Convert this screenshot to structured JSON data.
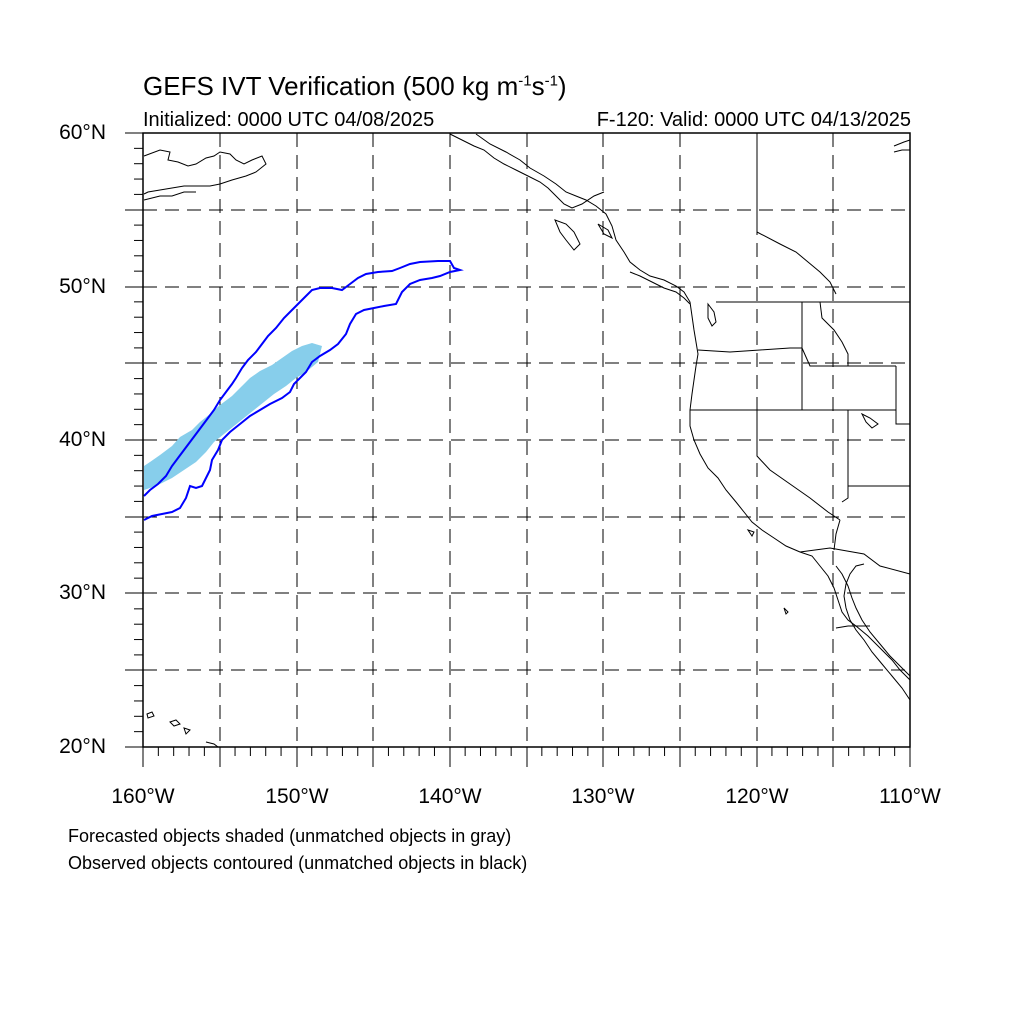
{
  "title": {
    "text": "GEFS IVT Verification (500 kg m",
    "exp1": "-1",
    "mid": "s",
    "exp2": "-1",
    "close": ")"
  },
  "subtitle_left": "Initialized: 0000 UTC 04/08/2025",
  "subtitle_right": "F-120: Valid: 0000 UTC 04/13/2025",
  "map": {
    "projection": "cylindrical-equidistant",
    "lon_range": [
      -160,
      -110
    ],
    "lat_range": [
      20,
      60
    ],
    "grid": "dashed every 5 degrees",
    "forecast_fill_color": "#87ceeb",
    "observed_contour_color": "#0000ff",
    "coastline_color": "#000000"
  },
  "lat_labels": [
    "60°N",
    "50°N",
    "40°N",
    "30°N",
    "20°N"
  ],
  "lon_labels": [
    "160°W",
    "150°W",
    "140°W",
    "130°W",
    "120°W",
    "110°W"
  ],
  "legend": {
    "line1": "Forecasted objects shaded (unmatched objects in gray)",
    "line2": "Observed objects contoured (unmatched objects in black)"
  }
}
